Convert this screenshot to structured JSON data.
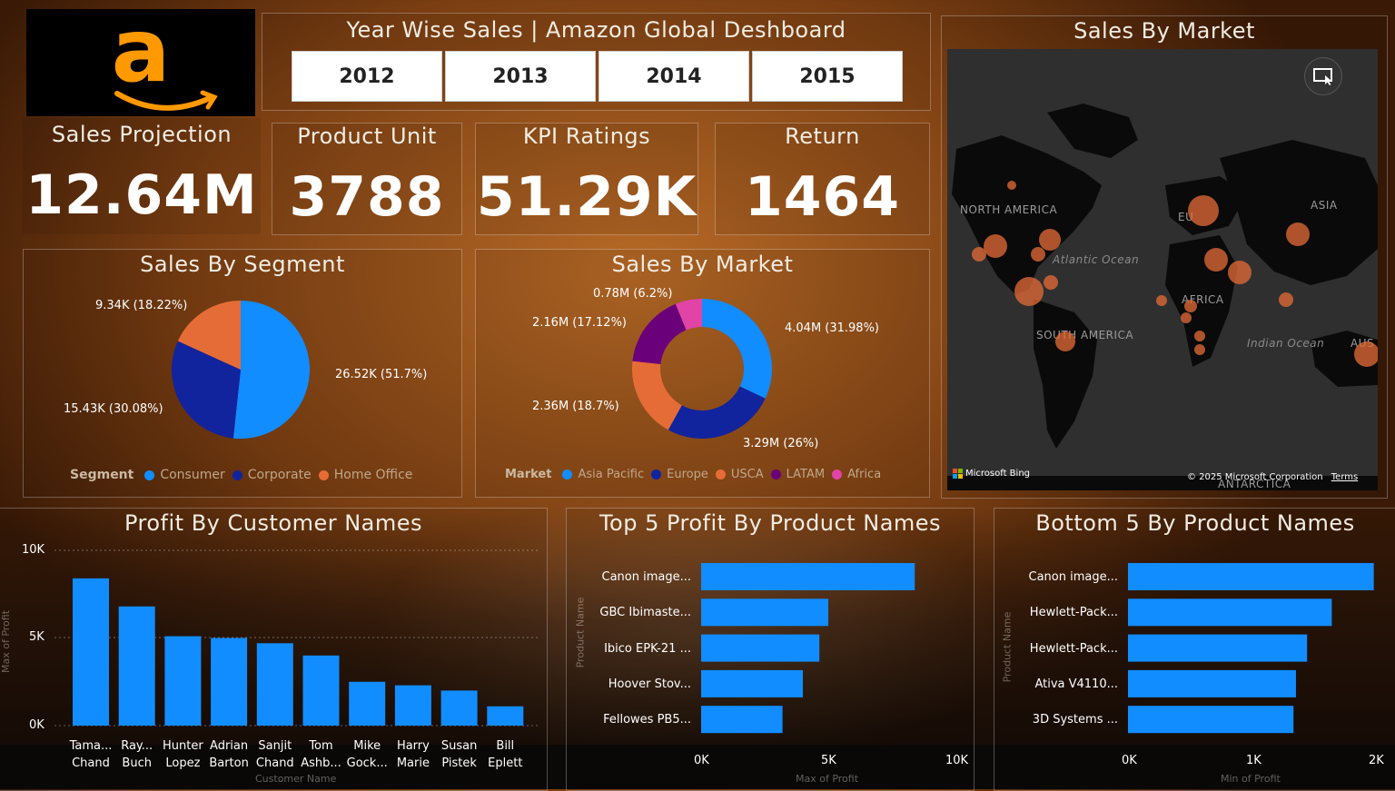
{
  "header": {
    "title": "Year Wise Sales | Amazon Global Deshboard",
    "years": [
      "2012",
      "2013",
      "2014",
      "2015"
    ]
  },
  "logo": {
    "glyph": "a"
  },
  "kpis": {
    "sales_projection": {
      "label": "Sales Projection",
      "value": "12.64M"
    },
    "product_unit": {
      "label": "Product Unit",
      "value": "3788"
    },
    "kpi_ratings": {
      "label": "KPI Ratings",
      "value": "51.29K"
    },
    "return": {
      "label": "Return",
      "value": "1464"
    }
  },
  "segment": {
    "title": "Sales By Segment",
    "legend_title": "Segment",
    "labels": [
      "9.34K (18.22%)",
      "26.52K (51.7%)",
      "15.43K (30.08%)"
    ],
    "legend": [
      "Consumer",
      "Corporate",
      "Home Office"
    ]
  },
  "market": {
    "title": "Sales By Market",
    "legend_title": "Market",
    "labels": [
      "0.78M (6.2%)",
      "2.16M (17.12%)",
      "4.04M (31.98%)",
      "2.36M (18.7%)",
      "3.29M (26%)"
    ],
    "legend": [
      "Asia Pacific",
      "Europe",
      "USCA",
      "LATAM",
      "Africa"
    ]
  },
  "map": {
    "title": "Sales By Market",
    "labels": {
      "na": "NORTH AMERICA",
      "sa": "SOUTH AMERICA",
      "af": "AFRICA",
      "asia": "ASIA",
      "eu": "EU",
      "aus": "AUS",
      "ant": "ANTARCTICA",
      "atl": "Atlantic Ocean",
      "ind": "Indian Ocean"
    },
    "bing": "Microsoft Bing",
    "copyright": "© 2025 Microsoft Corporation",
    "terms": "Terms"
  },
  "customers": {
    "title": "Profit By Customer Names",
    "y_ticks": [
      "10K",
      "5K",
      "0K"
    ],
    "y_label": "Max of Profit",
    "x_label": "Customer Name",
    "names": [
      [
        "Tama...",
        "Chand"
      ],
      [
        "Ray...",
        "Buch"
      ],
      [
        "Hunter",
        "Lopez"
      ],
      [
        "Adrian",
        "Barton"
      ],
      [
        "Sanjit",
        "Chand"
      ],
      [
        "Tom",
        "Ashb..."
      ],
      [
        "Mike",
        "Gock..."
      ],
      [
        "Harry",
        "Marie"
      ],
      [
        "Susan",
        "Pistek"
      ],
      [
        "Bill",
        "Eplett"
      ]
    ]
  },
  "top5": {
    "title": "Top 5 Profit By Product Names",
    "names": [
      "Canon image...",
      "GBC Ibimaste...",
      "Ibico EPK-21 ...",
      "Hoover Stov...",
      "Fellowes PB5..."
    ],
    "x_ticks": [
      "0K",
      "5K",
      "10K"
    ],
    "x_label": "Max of Profit",
    "y_label": "Product Name"
  },
  "bottom5": {
    "title": "Bottom 5 By Product Names",
    "names": [
      "Canon image...",
      "Hewlett-Pack...",
      "Hewlett-Pack...",
      "Ativa V4110...",
      "3D Systems ..."
    ],
    "x_ticks": [
      "0K",
      "1K",
      "2K"
    ],
    "x_label": "Min of Profit",
    "y_label": "Product Name"
  },
  "colors": {
    "blue": "#118DFF",
    "navy": "#12239E",
    "orange": "#E66C37",
    "purple": "#6B007B",
    "pink": "#E044A7"
  },
  "chart_data": [
    {
      "type": "pie",
      "title": "Sales By Segment",
      "categories": [
        "Consumer",
        "Corporate",
        "Home Office"
      ],
      "values": [
        26.52,
        15.43,
        9.34
      ],
      "unit": "K"
    },
    {
      "type": "pie",
      "title": "Sales By Market",
      "categories": [
        "Asia Pacific",
        "Europe",
        "USCA",
        "LATAM",
        "Africa"
      ],
      "values": [
        4.04,
        3.29,
        2.36,
        2.16,
        0.78
      ],
      "unit": "M"
    },
    {
      "type": "bar",
      "title": "Profit By Customer Names",
      "categories": [
        "Tamara Chand",
        "Raymond Buch",
        "Hunter Lopez",
        "Adrian Barton",
        "Sanjit Chand",
        "Tom Ashbrook",
        "Mike Gockenbach",
        "Harry Marie",
        "Susan Pistek",
        "Bill Eplett"
      ],
      "values": [
        8400,
        6800,
        5100,
        5000,
        4700,
        4000,
        2500,
        2300,
        2000,
        1100
      ],
      "ylim": [
        0,
        10000
      ]
    },
    {
      "type": "bar",
      "title": "Top 5 Profit By Product Names",
      "categories": [
        "Canon image...",
        "GBC Ibimaste...",
        "Ibico EPK-21 ...",
        "Hoover Stov...",
        "Fellowes PB5..."
      ],
      "values": [
        8400,
        5000,
        4650,
        4000,
        3200
      ],
      "xlim": [
        0,
        10000
      ]
    },
    {
      "type": "bar",
      "title": "Bottom 5 By Product Names",
      "categories": [
        "Canon image...",
        "Hewlett-Pack...",
        "Hewlett-Pack...",
        "Ativa V4110...",
        "3D Systems ..."
      ],
      "values": [
        1990,
        1650,
        1450,
        1360,
        1340
      ],
      "xlim": [
        0,
        2000
      ]
    }
  ]
}
